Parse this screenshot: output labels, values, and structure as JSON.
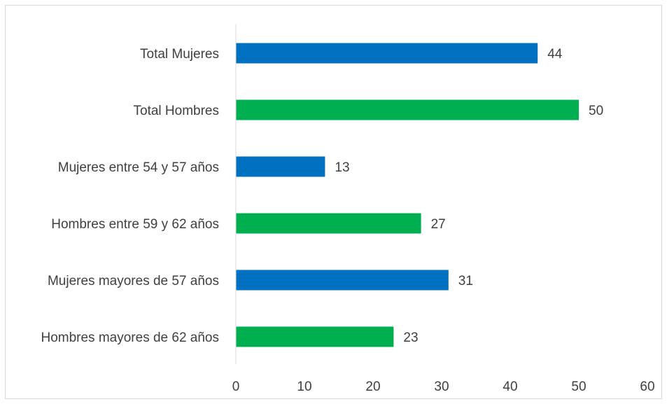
{
  "chart_data": {
    "type": "bar",
    "orientation": "horizontal",
    "title": "",
    "xlabel": "",
    "ylabel": "",
    "categories": [
      "Total Mujeres",
      "Total Hombres",
      "Mujeres entre 54 y 57 años",
      "Hombres entre 59 y 62 años",
      "Mujeres mayores de 57 años",
      "Hombres mayores de 62 años"
    ],
    "values": [
      44,
      50,
      13,
      27,
      31,
      23
    ],
    "colors": [
      "#0070c0",
      "#00b050",
      "#0070c0",
      "#00b050",
      "#0070c0",
      "#00b050"
    ],
    "xlim": [
      0,
      60
    ],
    "xticks": [
      0,
      10,
      20,
      30,
      40,
      50,
      60
    ],
    "grid": false,
    "data_labels": true,
    "legend": "none"
  }
}
